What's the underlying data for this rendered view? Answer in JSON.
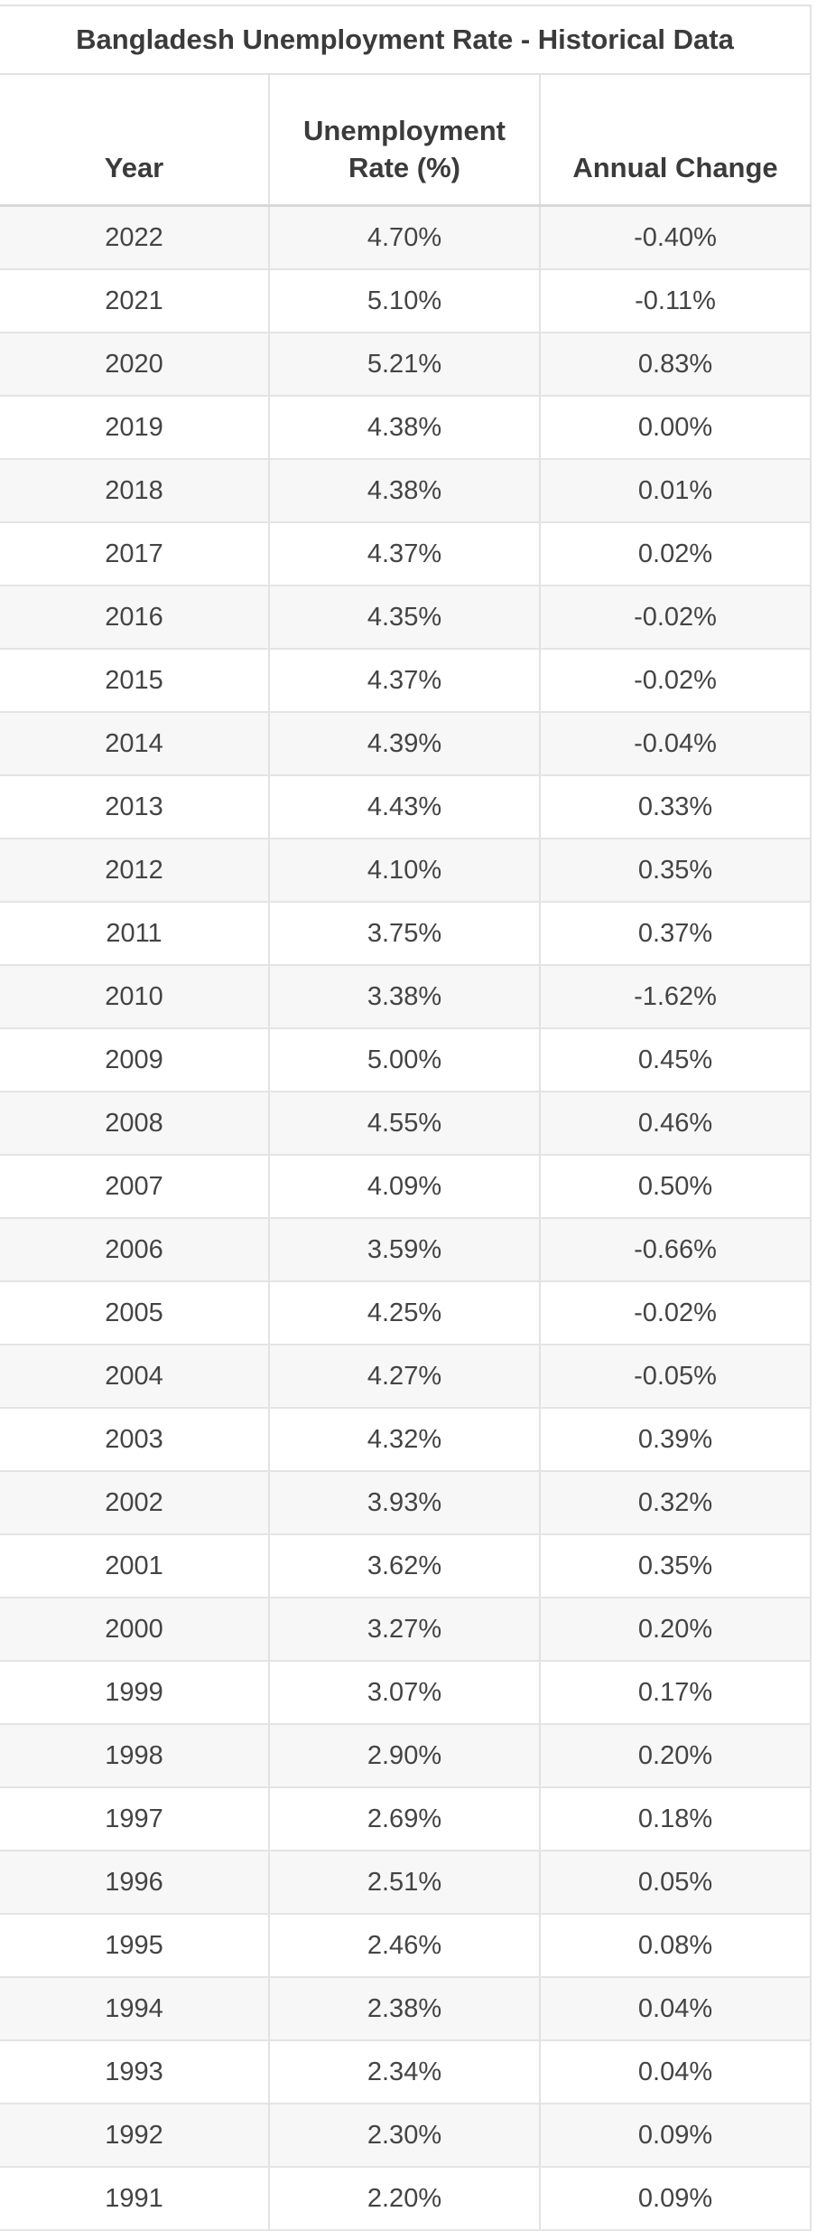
{
  "table": {
    "title": "Bangladesh Unemployment Rate - Historical Data",
    "headers": {
      "year": "Year",
      "rate_line1": "Unemployment",
      "rate_line2": "Rate (%)",
      "change": "Annual Change"
    },
    "rows": [
      {
        "year": "2022",
        "rate": "4.70%",
        "change": "-0.40%"
      },
      {
        "year": "2021",
        "rate": "5.10%",
        "change": "-0.11%"
      },
      {
        "year": "2020",
        "rate": "5.21%",
        "change": "0.83%"
      },
      {
        "year": "2019",
        "rate": "4.38%",
        "change": "0.00%"
      },
      {
        "year": "2018",
        "rate": "4.38%",
        "change": "0.01%"
      },
      {
        "year": "2017",
        "rate": "4.37%",
        "change": "0.02%"
      },
      {
        "year": "2016",
        "rate": "4.35%",
        "change": "-0.02%"
      },
      {
        "year": "2015",
        "rate": "4.37%",
        "change": "-0.02%"
      },
      {
        "year": "2014",
        "rate": "4.39%",
        "change": "-0.04%"
      },
      {
        "year": "2013",
        "rate": "4.43%",
        "change": "0.33%"
      },
      {
        "year": "2012",
        "rate": "4.10%",
        "change": "0.35%"
      },
      {
        "year": "2011",
        "rate": "3.75%",
        "change": "0.37%"
      },
      {
        "year": "2010",
        "rate": "3.38%",
        "change": "-1.62%"
      },
      {
        "year": "2009",
        "rate": "5.00%",
        "change": "0.45%"
      },
      {
        "year": "2008",
        "rate": "4.55%",
        "change": "0.46%"
      },
      {
        "year": "2007",
        "rate": "4.09%",
        "change": "0.50%"
      },
      {
        "year": "2006",
        "rate": "3.59%",
        "change": "-0.66%"
      },
      {
        "year": "2005",
        "rate": "4.25%",
        "change": "-0.02%"
      },
      {
        "year": "2004",
        "rate": "4.27%",
        "change": "-0.05%"
      },
      {
        "year": "2003",
        "rate": "4.32%",
        "change": "0.39%"
      },
      {
        "year": "2002",
        "rate": "3.93%",
        "change": "0.32%"
      },
      {
        "year": "2001",
        "rate": "3.62%",
        "change": "0.35%"
      },
      {
        "year": "2000",
        "rate": "3.27%",
        "change": "0.20%"
      },
      {
        "year": "1999",
        "rate": "3.07%",
        "change": "0.17%"
      },
      {
        "year": "1998",
        "rate": "2.90%",
        "change": "0.20%"
      },
      {
        "year": "1997",
        "rate": "2.69%",
        "change": "0.18%"
      },
      {
        "year": "1996",
        "rate": "2.51%",
        "change": "0.05%"
      },
      {
        "year": "1995",
        "rate": "2.46%",
        "change": "0.08%"
      },
      {
        "year": "1994",
        "rate": "2.38%",
        "change": "0.04%"
      },
      {
        "year": "1993",
        "rate": "2.34%",
        "change": "0.04%"
      },
      {
        "year": "1992",
        "rate": "2.30%",
        "change": "0.09%"
      },
      {
        "year": "1991",
        "rate": "2.20%",
        "change": "0.09%"
      }
    ]
  }
}
